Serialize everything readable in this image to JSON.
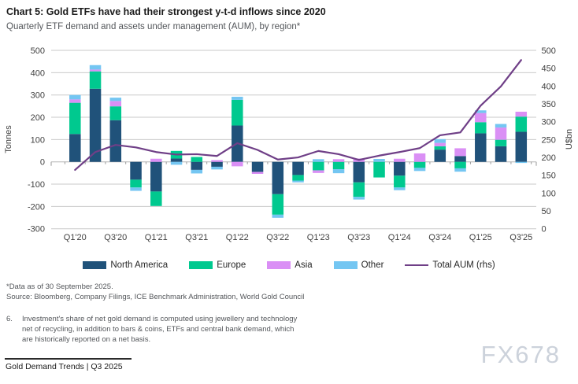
{
  "chart_data": {
    "type": "stacked-bar+line",
    "title": "Chart 5: Gold ETFs have had their strongest y-t-d inflows since 2020",
    "subtitle": "Quarterly ETF demand and assets under management (AUM), by region*",
    "categories": [
      "Q1'20",
      "Q2'20",
      "Q3'20",
      "Q4'20",
      "Q1'21",
      "Q2'21",
      "Q3'21",
      "Q4'21",
      "Q1'22",
      "Q2'22",
      "Q3'22",
      "Q4'22",
      "Q1'23",
      "Q2'23",
      "Q3'23",
      "Q4'23",
      "Q1'24",
      "Q2'24",
      "Q3'24",
      "Q4'24",
      "Q1'25",
      "Q2'25",
      "Q3'25"
    ],
    "x_axis": {
      "tick_label_every": 2
    },
    "left_axis": {
      "label": "Tonnes",
      "min": -300,
      "max": 500,
      "step": 100
    },
    "right_axis": {
      "label": "U$bn",
      "min": 0,
      "max": 500,
      "step": 50
    },
    "grid": true,
    "legend_position": "bottom",
    "series": [
      {
        "name": "North America",
        "color": "#20527a",
        "values": [
          125,
          328,
          187,
          -80,
          -133,
          15,
          -36,
          -22,
          163,
          -45,
          -145,
          -59,
          0,
          0,
          -92,
          0,
          -62,
          0,
          55,
          26,
          128,
          70,
          135
        ]
      },
      {
        "name": "Europe",
        "color": "#00c98f",
        "values": [
          140,
          78,
          62,
          -35,
          -65,
          34,
          22,
          0,
          115,
          0,
          -92,
          -25,
          -38,
          -33,
          -65,
          -70,
          -53,
          -27,
          15,
          -29,
          50,
          29,
          68
        ]
      },
      {
        "name": "Asia",
        "color": "#da8ff5",
        "values": [
          15,
          8,
          24,
          0,
          14,
          0,
          0,
          8,
          -20,
          -9,
          0,
          0,
          -12,
          12,
          15,
          0,
          14,
          38,
          15,
          35,
          41,
          55,
          22
        ]
      },
      {
        "name": "Other",
        "color": "#74c6f2",
        "values": [
          20,
          20,
          15,
          -15,
          0,
          -13,
          -16,
          -12,
          14,
          0,
          -14,
          -8,
          12,
          -18,
          -12,
          13,
          -12,
          -14,
          17,
          -15,
          12,
          16,
          -5
        ]
      }
    ],
    "line_series": {
      "name": "Total AUM (rhs)",
      "axis": "right",
      "color": "#6f3f87",
      "values": [
        165,
        215,
        235,
        228,
        215,
        208,
        209,
        204,
        240,
        221,
        194,
        200,
        218,
        209,
        193,
        205,
        215,
        226,
        262,
        270,
        345,
        399,
        473
      ]
    }
  },
  "footnotes": {
    "data_asof": "*Data as of 30 September 2025.",
    "source": "Source: Bloomberg, Company Filings, ICE Benchmark Administration, World Gold Council",
    "note_number": "6.",
    "note_text": "Investment's share of net gold demand is computed using jewellery and technology net of recycling, in addition to bars & coins, ETFs and central bank demand, which are historically reported on a net basis."
  },
  "footer": {
    "text": "Gold Demand Trends | Q3 2025"
  },
  "watermark": "FX678"
}
